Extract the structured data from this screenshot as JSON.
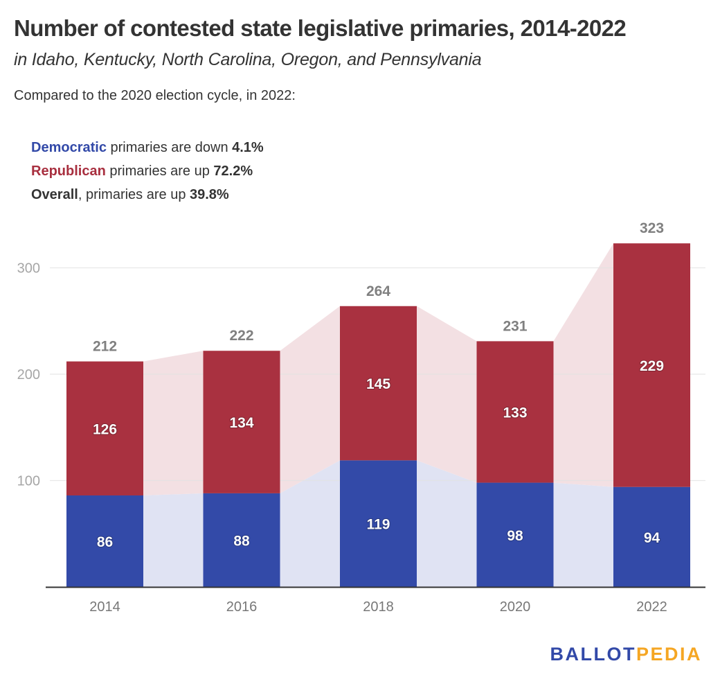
{
  "header": {
    "title": "Number of contested state legislative primaries, 2014-2022",
    "subtitle": "in Idaho, Kentucky, North Carolina, Oregon, and Pennsylvania",
    "intro": "Compared to the 2020 election cycle, in 2022:"
  },
  "notes": [
    {
      "label": "Democratic",
      "text": " primaries are down ",
      "value": "4.1%"
    },
    {
      "label": "Republican",
      "text": " primaries are up ",
      "value": "72.2%"
    },
    {
      "label": "Overall",
      "text": ", primaries are up ",
      "value": "39.8%"
    }
  ],
  "colors": {
    "democratic": "#334aa8",
    "republican": "#a93140",
    "democratic_area": "#e0e3f3",
    "republican_area": "#f3e0e3",
    "text": "#333333",
    "axis_text": "#a6a6a6",
    "total_label": "#808080",
    "gridline": "#e2e2e2",
    "baseline": "#333333"
  },
  "chart_data": {
    "type": "bar",
    "stacked": true,
    "title": "Number of contested state legislative primaries, 2014-2022",
    "subtitle": "in Idaho, Kentucky, North Carolina, Oregon, and Pennsylvania",
    "xlabel": "",
    "ylabel": "",
    "categories": [
      "2014",
      "2016",
      "2018",
      "2020",
      "2022"
    ],
    "series": [
      {
        "name": "Democratic",
        "values": [
          86,
          88,
          119,
          98,
          94
        ]
      },
      {
        "name": "Republican",
        "values": [
          126,
          134,
          145,
          133,
          229
        ]
      }
    ],
    "totals": [
      212,
      222,
      264,
      231,
      323
    ],
    "ylim": [
      0,
      330
    ],
    "yticks": [
      100,
      200,
      300
    ],
    "grid": true,
    "connecting_areas": true,
    "legend": "none"
  },
  "branding": {
    "logo_part1": "BALLOT",
    "logo_part2": "PEDIA"
  }
}
